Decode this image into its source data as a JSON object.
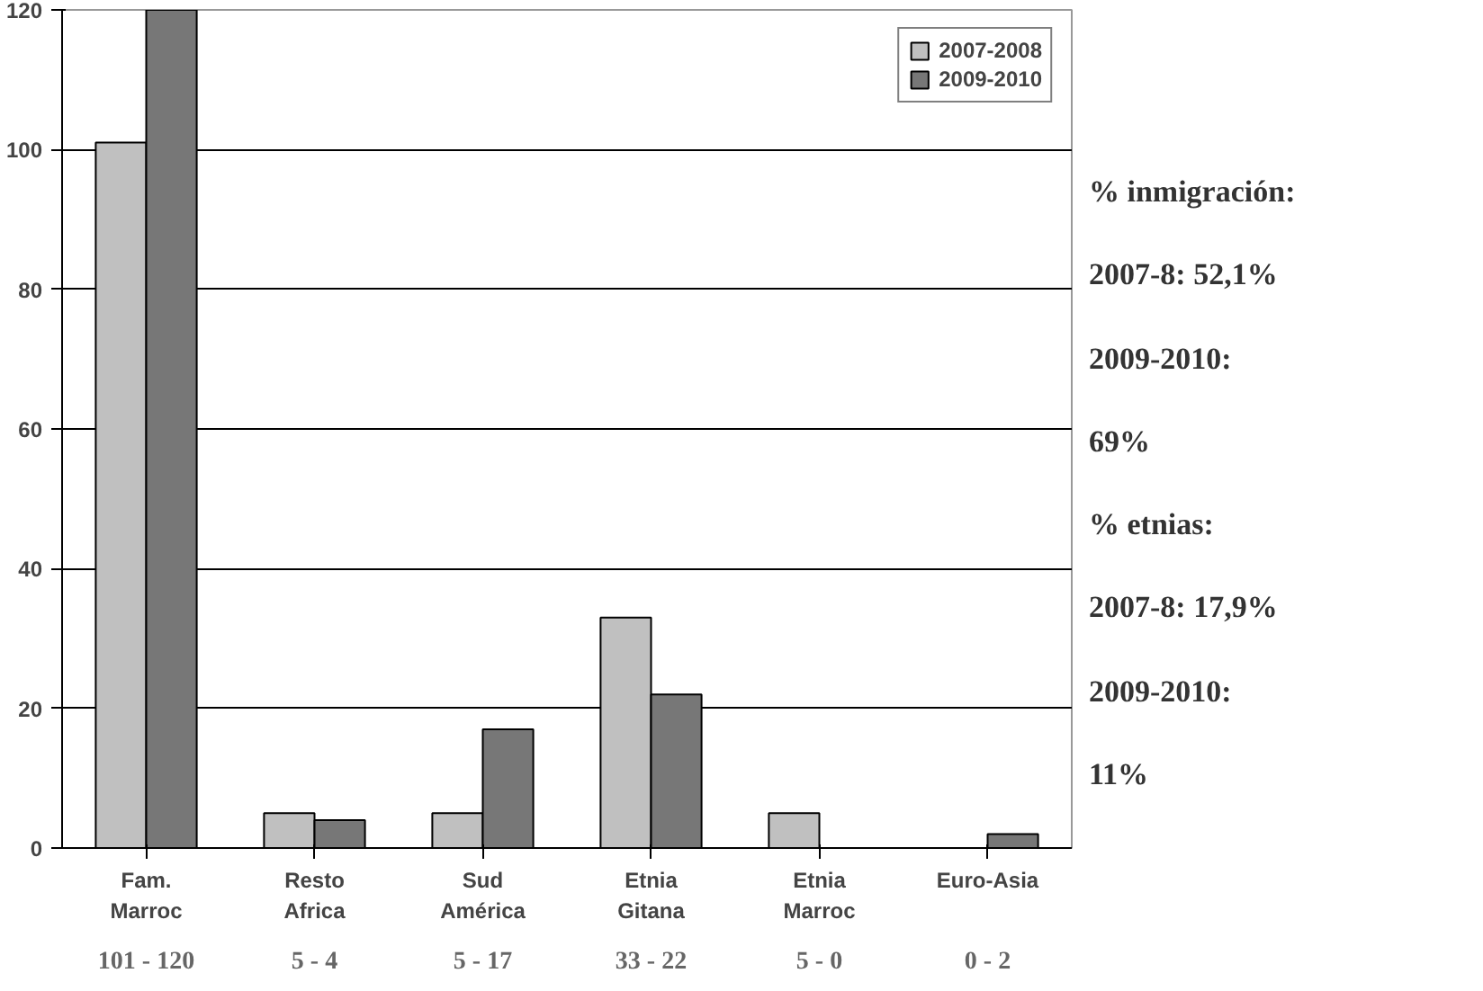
{
  "chart_data": {
    "type": "bar",
    "categories": [
      "Fam. Marroc",
      "Resto Africa",
      "Sud América",
      "Etnia Gitana",
      "Etnia Marroc",
      "Euro-Asia"
    ],
    "series": [
      {
        "name": "2007-2008",
        "color": "#c0c0c0",
        "values": [
          101,
          5,
          5,
          33,
          5,
          0
        ]
      },
      {
        "name": "2009-2010",
        "color": "#777777",
        "values": [
          120,
          4,
          17,
          22,
          0,
          2
        ]
      }
    ],
    "ylim": [
      0,
      120
    ],
    "yticks": [
      0,
      20,
      40,
      60,
      80,
      100,
      120
    ],
    "grid": "y",
    "legend": "top right",
    "annotations": [
      "101 - 120",
      "5 - 4",
      "5 - 17",
      "33 - 22",
      "5 - 0",
      "0 - 2",
      "% inmigración:",
      "2007-8: 52,1%",
      "2009-2010:",
      "69%",
      "% etnias:",
      "2007-8: 17,9%",
      "2009-2010:",
      "11%"
    ]
  }
}
